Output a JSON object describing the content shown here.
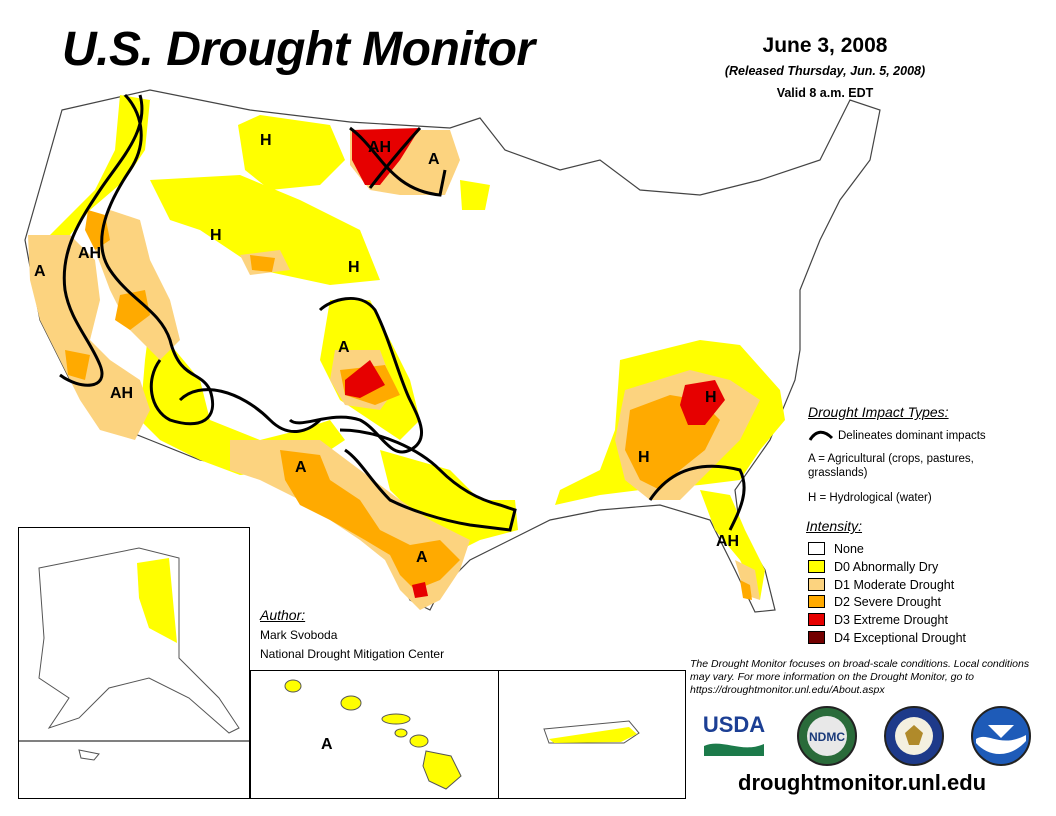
{
  "title": "U.S. Drought Monitor",
  "date": "June 3, 2008",
  "released": "(Released Thursday, Jun. 5, 2008)",
  "valid": "Valid 8 a.m. EDT",
  "impact_types": {
    "title": "Drought Impact Types:",
    "delineates": "Delineates dominant impacts",
    "agricultural": "A = Agricultural (crops, pastures, grasslands)",
    "hydrological": "H = Hydrological (water)"
  },
  "intensity": {
    "title": "Intensity:",
    "items": [
      {
        "label": "None",
        "color": "#ffffff"
      },
      {
        "label": "D0 Abnormally Dry",
        "color": "#ffff00"
      },
      {
        "label": "D1 Moderate Drought",
        "color": "#fcd37f"
      },
      {
        "label": "D2 Severe Drought",
        "color": "#ffaa00"
      },
      {
        "label": "D3 Extreme Drought",
        "color": "#e60000"
      },
      {
        "label": "D4 Exceptional Drought",
        "color": "#730000"
      }
    ]
  },
  "author": {
    "title": "Author:",
    "name": "Mark Svoboda",
    "org": "National Drought Mitigation Center"
  },
  "note": "The Drought Monitor focuses on broad-scale conditions. Local conditions may vary. For more information on the Drought Monitor, go to https://droughtmonitor.unl.edu/About.aspx",
  "website": "droughtmonitor.unl.edu",
  "map_labels": {
    "nw_ah": "AH",
    "montana_h": "H",
    "nd_ah": "AH",
    "mn_a": "A",
    "ca_a": "A",
    "wy_h": "H",
    "ne_h": "H",
    "co_a": "A",
    "sw_ah": "AH",
    "nm_a": "A",
    "tx_a": "A",
    "se_h": "H",
    "nc_h": "H",
    "fl_ah": "AH",
    "hi_a": "A"
  },
  "logos": {
    "usda": "USDA",
    "ndmc": "NDMC"
  }
}
